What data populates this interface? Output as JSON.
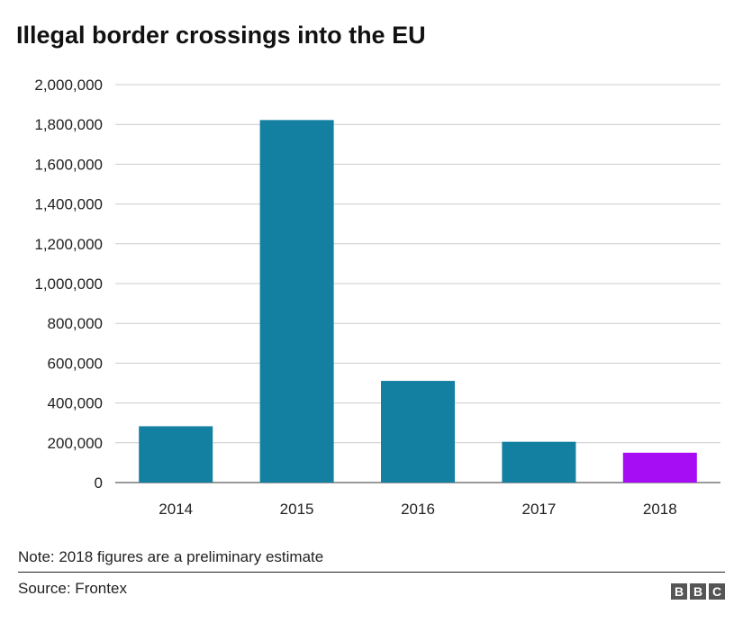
{
  "chart_data": {
    "type": "bar",
    "title": "Illegal border crossings into the EU",
    "categories": [
      "2014",
      "2015",
      "2016",
      "2017",
      "2018"
    ],
    "values": [
      283000,
      1822000,
      511000,
      205000,
      150000
    ],
    "bar_colors": [
      "#1380a1",
      "#1380a1",
      "#1380a1",
      "#1380a1",
      "#a60df5"
    ],
    "ylim": [
      0,
      2000000
    ],
    "yticks": [
      0,
      200000,
      400000,
      600000,
      800000,
      1000000,
      1200000,
      1400000,
      1600000,
      1800000,
      2000000
    ],
    "ytick_labels": [
      "0",
      "200,000",
      "400,000",
      "600,000",
      "800,000",
      "1,000,000",
      "1,200,000",
      "1,400,000",
      "1,600,000",
      "1,800,000",
      "2,000,000"
    ],
    "grid": true,
    "xlabel": "",
    "ylabel": ""
  },
  "footer": {
    "note": "Note: 2018 figures are a preliminary estimate",
    "source": "Source: Frontex",
    "logo_letters": [
      "B",
      "B",
      "C"
    ]
  }
}
